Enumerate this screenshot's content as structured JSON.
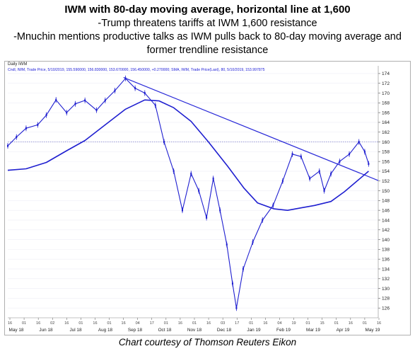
{
  "header": {
    "title": "IWM with 80-day moving average, horizontal line at 1,600",
    "line1": "-Trump threatens tariffs at IWM 1,600 resistance",
    "line2": "-Mnuchin mentions productive talks as IWM pulls back to 80-day moving average and former trendline resistance"
  },
  "panel": {
    "name": "Daily IWM",
    "legend": "Cndl, IWM, Trade Price, 5/10/2019, 155.590000, 156.830000, 153.670000, 156.450000, +0.270000; SMA, IWM, Trade Price(Last), 80, 5/10/2019, 153.997875"
  },
  "footer": {
    "credit": "Chart courtesy of Thomson Reuters Eikon"
  },
  "colors": {
    "candle": "#1f1fd0",
    "average": "#1f1fd0",
    "trendline": "#2a2ad8",
    "resistance": "#7d7dcc",
    "grid": "#eeeef6"
  },
  "chart_data": {
    "type": "line",
    "title": "IWM with 80-day moving average, horizontal line at 1,600",
    "yaxis": {
      "min": 124,
      "max": 175,
      "ticks": [
        126,
        128,
        130,
        132,
        134,
        136,
        138,
        140,
        142,
        144,
        146,
        148,
        150,
        152,
        154,
        156,
        158,
        160,
        162,
        164,
        166,
        168,
        170,
        172,
        174
      ],
      "position": "right"
    },
    "xaxis": {
      "months": [
        "May 18",
        "Jun 18",
        "Jul 18",
        "Aug 18",
        "Sep 18",
        "Oct 18",
        "Nov 18",
        "Dec 18",
        "Jan 19",
        "Feb 19",
        "Mar 19",
        "Apr 19",
        "May 19"
      ],
      "day_ticks": [
        "16",
        "01",
        "16",
        "02",
        "16",
        "01",
        "16",
        "01",
        "16",
        "04",
        "17",
        "01",
        "16",
        "01",
        "16",
        "03",
        "17",
        "01",
        "16",
        "04",
        "19",
        "01",
        "15",
        "01",
        "16",
        "01",
        "16"
      ]
    },
    "x_start": "2018-05-01",
    "x_end": "2019-05-20",
    "series": [
      {
        "name": "IWM",
        "kind": "price",
        "points": [
          [
            "2018-05-01",
            159.2
          ],
          [
            "2018-05-10",
            161.0
          ],
          [
            "2018-05-20",
            162.8
          ],
          [
            "2018-06-01",
            163.5
          ],
          [
            "2018-06-10",
            165.5
          ],
          [
            "2018-06-20",
            168.6
          ],
          [
            "2018-07-01",
            166.0
          ],
          [
            "2018-07-10",
            167.8
          ],
          [
            "2018-07-20",
            168.5
          ],
          [
            "2018-08-01",
            166.5
          ],
          [
            "2018-08-10",
            168.5
          ],
          [
            "2018-08-20",
            170.5
          ],
          [
            "2018-08-31",
            173.0
          ],
          [
            "2018-09-10",
            171.0
          ],
          [
            "2018-09-20",
            170.0
          ],
          [
            "2018-10-01",
            167.5
          ],
          [
            "2018-10-10",
            160.0
          ],
          [
            "2018-10-20",
            154.0
          ],
          [
            "2018-10-29",
            146.0
          ],
          [
            "2018-11-07",
            153.5
          ],
          [
            "2018-11-15",
            150.0
          ],
          [
            "2018-11-23",
            144.5
          ],
          [
            "2018-11-30",
            152.5
          ],
          [
            "2018-12-07",
            146.0
          ],
          [
            "2018-12-14",
            139.0
          ],
          [
            "2018-12-20",
            131.0
          ],
          [
            "2018-12-24",
            126.0
          ],
          [
            "2018-12-31",
            134.0
          ],
          [
            "2019-01-10",
            139.5
          ],
          [
            "2019-01-20",
            144.0
          ],
          [
            "2019-01-31",
            147.0
          ],
          [
            "2019-02-10",
            152.0
          ],
          [
            "2019-02-20",
            157.5
          ],
          [
            "2019-03-01",
            157.0
          ],
          [
            "2019-03-10",
            152.5
          ],
          [
            "2019-03-20",
            154.0
          ],
          [
            "2019-03-25",
            150.0
          ],
          [
            "2019-04-01",
            153.5
          ],
          [
            "2019-04-10",
            156.0
          ],
          [
            "2019-04-20",
            157.5
          ],
          [
            "2019-04-30",
            160.0
          ],
          [
            "2019-05-06",
            158.0
          ],
          [
            "2019-05-10",
            155.5
          ]
        ]
      },
      {
        "name": "SMA 80",
        "kind": "average",
        "points": [
          [
            "2018-05-01",
            154.2
          ],
          [
            "2018-05-20",
            154.5
          ],
          [
            "2018-06-10",
            155.8
          ],
          [
            "2018-07-01",
            158.2
          ],
          [
            "2018-07-20",
            160.3
          ],
          [
            "2018-08-10",
            163.5
          ],
          [
            "2018-08-31",
            166.7
          ],
          [
            "2018-09-20",
            168.6
          ],
          [
            "2018-10-05",
            168.4
          ],
          [
            "2018-10-20",
            167.0
          ],
          [
            "2018-11-07",
            164.2
          ],
          [
            "2018-11-25",
            160.0
          ],
          [
            "2018-12-15",
            155.0
          ],
          [
            "2019-01-01",
            150.5
          ],
          [
            "2019-01-15",
            147.5
          ],
          [
            "2019-02-01",
            146.3
          ],
          [
            "2019-02-15",
            146.0
          ],
          [
            "2019-03-01",
            146.5
          ],
          [
            "2019-03-15",
            147.0
          ],
          [
            "2019-04-01",
            147.8
          ],
          [
            "2019-04-15",
            149.8
          ],
          [
            "2019-05-01",
            152.5
          ],
          [
            "2019-05-10",
            154.0
          ]
        ]
      },
      {
        "name": "Trendline",
        "kind": "trendline",
        "points": [
          [
            "2018-08-29",
            173.2
          ],
          [
            "2019-05-20",
            152.1
          ]
        ]
      },
      {
        "name": "Resistance",
        "kind": "horizontal",
        "points": [
          [
            "2018-05-01",
            160.0
          ],
          [
            "2019-05-20",
            160.0
          ]
        ]
      }
    ]
  }
}
